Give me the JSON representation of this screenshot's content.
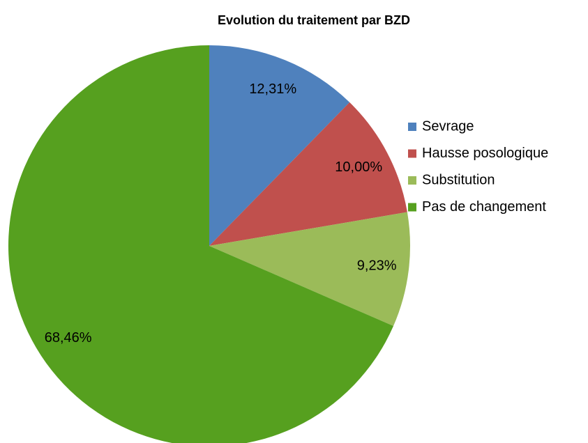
{
  "chart_data": {
    "type": "pie",
    "title": "Evolution du traitement par BZD",
    "categories": [
      "Sevrage",
      "Hausse posologique",
      "Substitution",
      "Pas de changement"
    ],
    "values": [
      12.31,
      10.0,
      9.23,
      68.46
    ],
    "value_labels": [
      "12,31%",
      "10,00%",
      "9,23%",
      "68,46%"
    ],
    "colors": [
      "#4f81bd",
      "#c0504d",
      "#9bbb59",
      "#56a01f"
    ],
    "legend": "right"
  }
}
